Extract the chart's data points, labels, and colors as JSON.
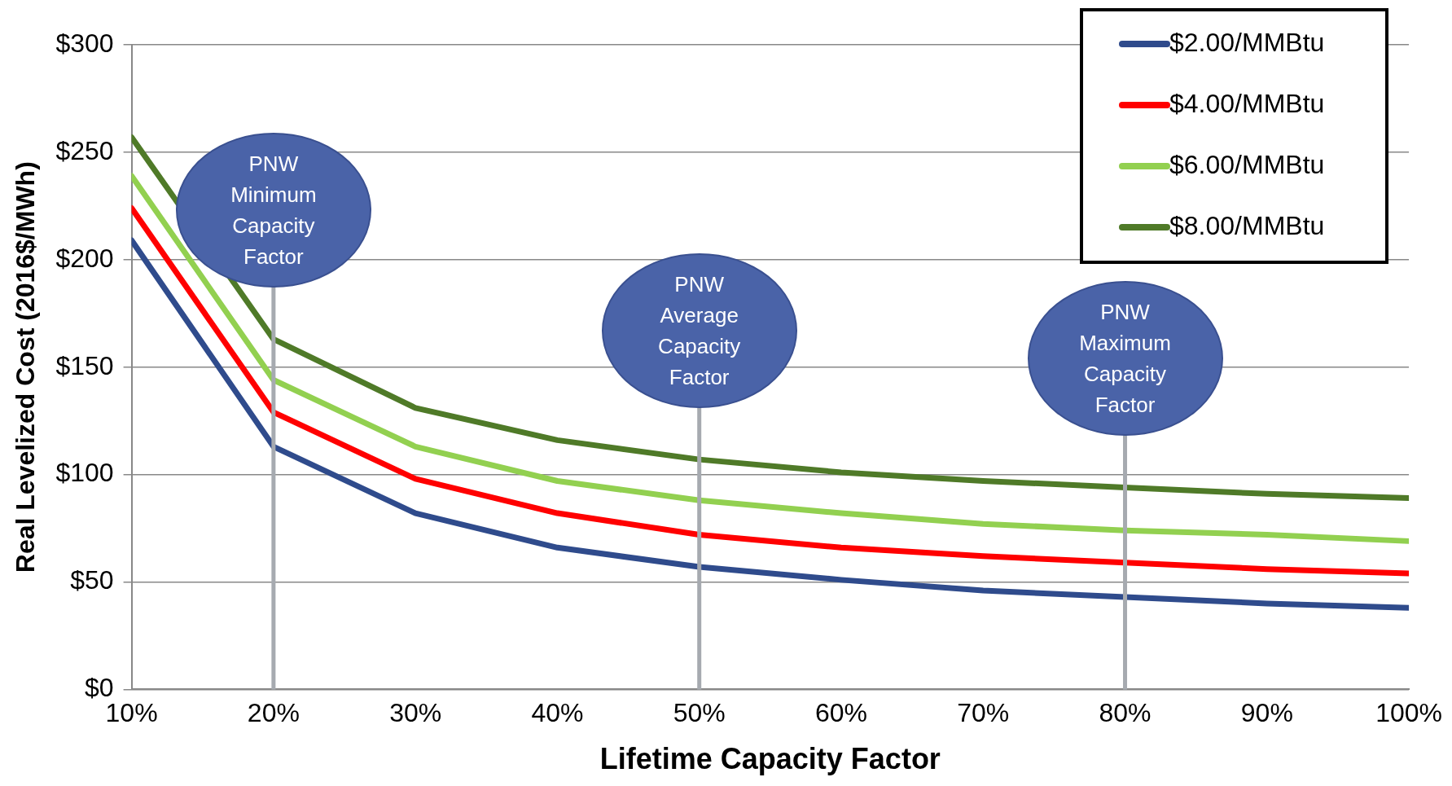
{
  "chart_data": {
    "type": "line",
    "xlabel": "Lifetime Capacity Factor",
    "ylabel": "Real Levelized Cost (2016$/MWh)",
    "x": [
      10,
      20,
      30,
      40,
      50,
      60,
      70,
      80,
      90,
      100
    ],
    "series": [
      {
        "name": "$2.00/MMBtu",
        "color": "#2f4b8c",
        "values": [
          209,
          113,
          82,
          66,
          57,
          51,
          46,
          43,
          40,
          38
        ]
      },
      {
        "name": "$4.00/MMBtu",
        "color": "#ff0000",
        "values": [
          224,
          129,
          98,
          82,
          72,
          66,
          62,
          59,
          56,
          54
        ]
      },
      {
        "name": "$6.00/MMBtu",
        "color": "#92d050",
        "values": [
          239,
          144,
          113,
          97,
          88,
          82,
          77,
          74,
          72,
          69
        ]
      },
      {
        "name": "$8.00/MMBtu",
        "color": "#4f7a28",
        "values": [
          257,
          163,
          131,
          116,
          107,
          101,
          97,
          94,
          91,
          89
        ]
      }
    ],
    "xlim": [
      10,
      100
    ],
    "xticks": [
      {
        "value": 10,
        "label": "10%"
      },
      {
        "value": 20,
        "label": "20%"
      },
      {
        "value": 30,
        "label": "30%"
      },
      {
        "value": 40,
        "label": "40%"
      },
      {
        "value": 50,
        "label": "50%"
      },
      {
        "value": 60,
        "label": "60%"
      },
      {
        "value": 70,
        "label": "70%"
      },
      {
        "value": 80,
        "label": "80%"
      },
      {
        "value": 90,
        "label": "90%"
      },
      {
        "value": 100,
        "label": "100%"
      }
    ],
    "ylim": [
      0,
      300
    ],
    "yticks": [
      {
        "value": 0,
        "label": "$0"
      },
      {
        "value": 50,
        "label": "$50"
      },
      {
        "value": 100,
        "label": "$100"
      },
      {
        "value": 150,
        "label": "$150"
      },
      {
        "value": 200,
        "label": "$200"
      },
      {
        "value": 250,
        "label": "$250"
      },
      {
        "value": 300,
        "label": "$300"
      }
    ],
    "ref_lines": [
      {
        "axis": "x",
        "value": 20,
        "label": "PNW Minimum Capacity Factor",
        "color": "#a6aab0"
      },
      {
        "axis": "x",
        "value": 50,
        "label": "PNW Average Capacity Factor",
        "color": "#a6aab0"
      },
      {
        "axis": "x",
        "value": 80,
        "label": "PNW Maximum Capacity Factor",
        "color": "#a6aab0"
      }
    ],
    "grid": "y",
    "legend": "top right",
    "marker": "none",
    "line_style": "solid"
  }
}
